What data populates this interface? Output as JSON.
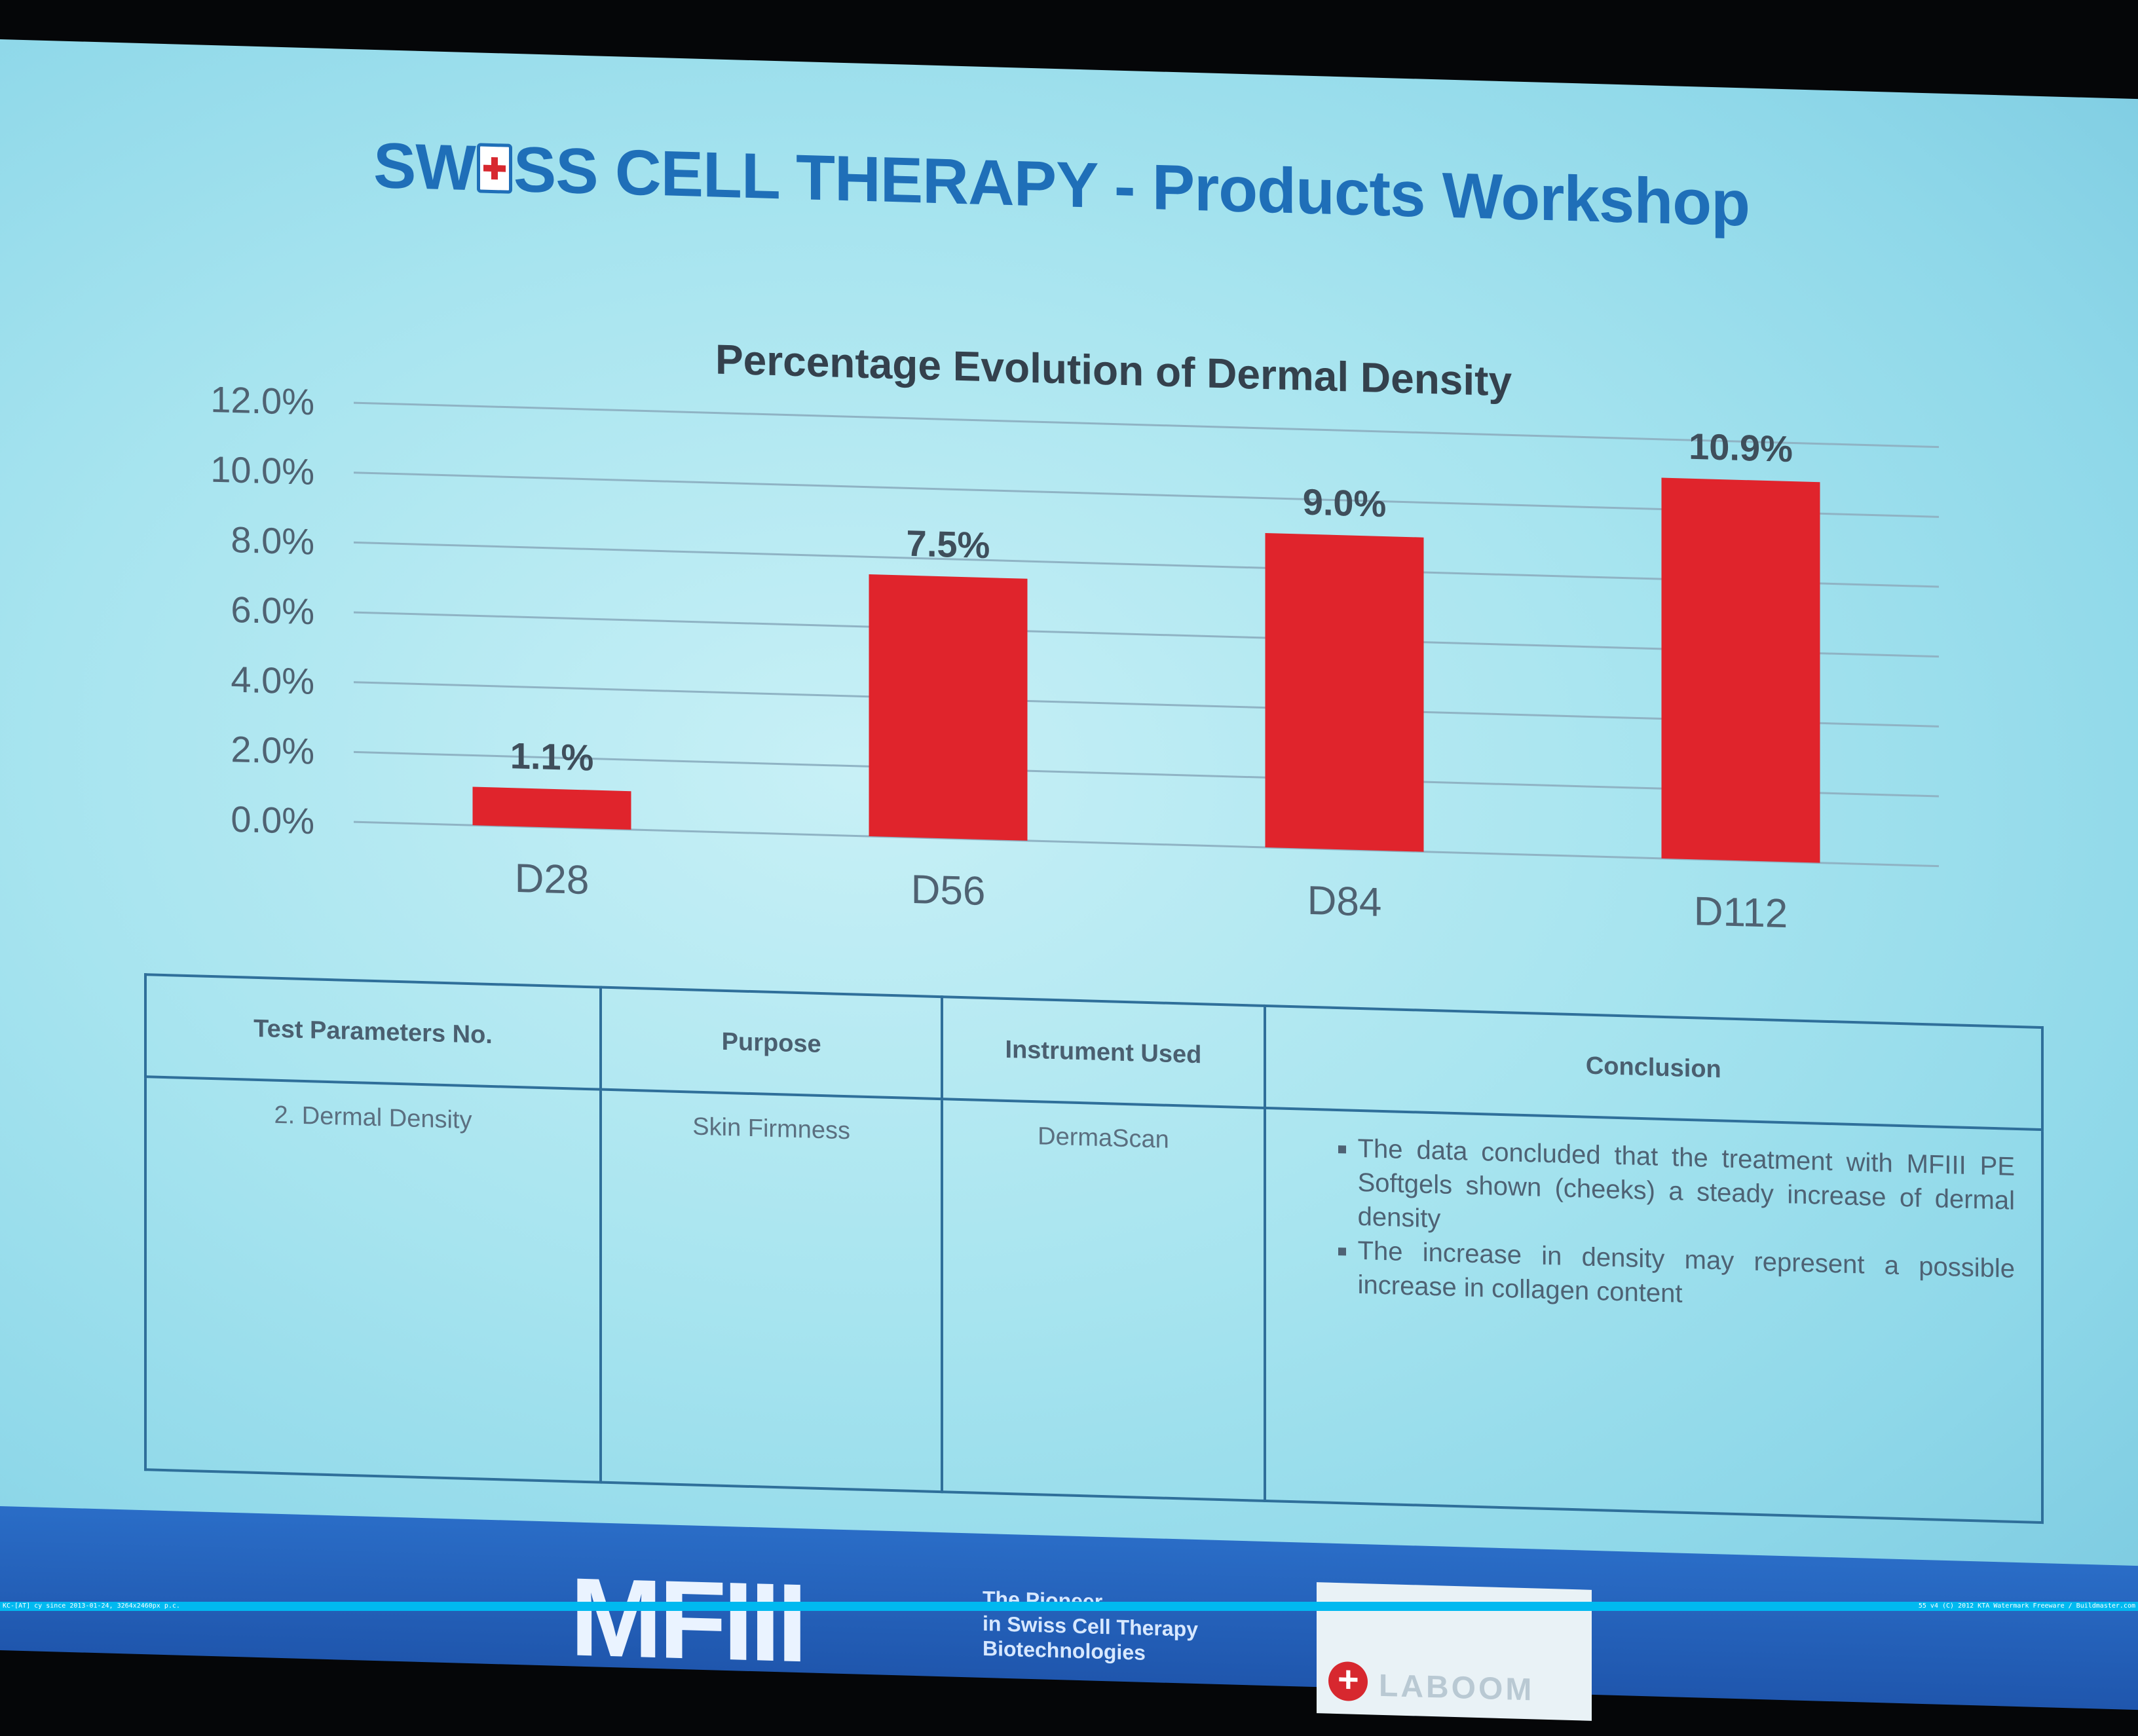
{
  "slide": {
    "title_pre": "SW",
    "title_post": "SS CELL THERAPY - Products Workshop"
  },
  "chart_data": {
    "type": "bar",
    "title": "Percentage Evolution of Dermal Density",
    "categories": [
      "D28",
      "D56",
      "D84",
      "D112"
    ],
    "values": [
      1.1,
      7.5,
      9.0,
      10.9
    ],
    "data_labels": [
      "1.1%",
      "7.5%",
      "9.0%",
      "10.9%"
    ],
    "ylim": [
      0,
      12
    ],
    "yticks": [
      "0.0%",
      "2.0%",
      "4.0%",
      "6.0%",
      "8.0%",
      "10.0%",
      "12.0%"
    ],
    "grid": true,
    "bar_color": "#e0242c"
  },
  "table": {
    "headers": [
      "Test Parameters No.",
      "Purpose",
      "Instrument Used",
      "Conclusion"
    ],
    "row": {
      "param": "2. Dermal Density",
      "purpose": "Skin Firmness",
      "instrument": "DermaScan",
      "conclusions": [
        "The data concluded that the treatment with MFIII PE Softgels shown (cheeks) a steady increase of dermal density",
        "The increase in density may represent a possible increase in collagen content"
      ]
    }
  },
  "footer": {
    "logo": "MFIII",
    "tagline": [
      "The Pioneer",
      "in Swiss Cell Therapy",
      "Biotechnologies"
    ],
    "partner_logo_text": "LABOOM"
  },
  "statusbar": {
    "left": "KC-[AT] cy since 2013-01-24, 3264x2460px p.c.",
    "right": "55 v4 (C) 2012 KTA Watermark Freeware / Buildmaster.com"
  }
}
